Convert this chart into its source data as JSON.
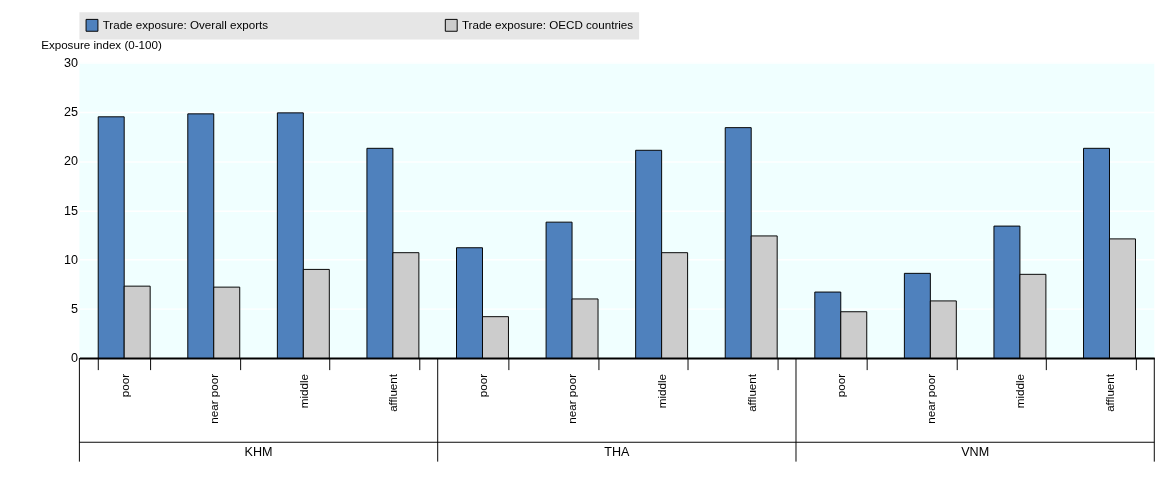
{
  "chart_data": {
    "type": "bar",
    "categories": [
      "poor",
      "near poor",
      "middle",
      "affluent",
      "poor",
      "near poor",
      "middle",
      "affluent",
      "poor",
      "near poor",
      "middle",
      "affluent"
    ],
    "series": [
      {
        "name": "Trade exposure: Overall exports",
        "color": "#4f81bd",
        "values": [
          24.5,
          24.8,
          24.9,
          21.3,
          11.2,
          13.8,
          21.1,
          23.4,
          6.7,
          8.6,
          13.4,
          21.3
        ]
      },
      {
        "name": "Trade exposure: OECD countries",
        "color": "#cccccc",
        "values": [
          7.3,
          7.2,
          9.0,
          10.7,
          4.2,
          6.0,
          10.7,
          12.4,
          4.7,
          5.8,
          8.5,
          12.1
        ]
      }
    ],
    "ylabel": "Exposure index (0-100)",
    "ylim": [
      0,
      30
    ],
    "yticks": [
      0,
      5,
      10,
      15,
      20,
      25,
      30
    ],
    "annotations": [
      "KHM",
      "THA",
      "VNM"
    ],
    "grid": "y",
    "legend": "top"
  }
}
